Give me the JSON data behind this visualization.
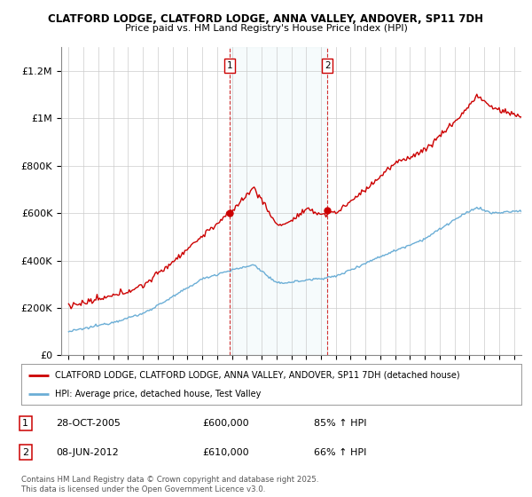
{
  "title": "CLATFORD LODGE, CLATFORD LODGE, ANNA VALLEY, ANDOVER, SP11 7DH",
  "subtitle": "Price paid vs. HM Land Registry's House Price Index (HPI)",
  "ylabel_ticks": [
    "£0",
    "£200K",
    "£400K",
    "£600K",
    "£800K",
    "£1M",
    "£1.2M"
  ],
  "ytick_values": [
    0,
    200000,
    400000,
    600000,
    800000,
    1000000,
    1200000
  ],
  "ylim": [
    0,
    1300000
  ],
  "xlim_start": 1994.5,
  "xlim_end": 2025.5,
  "hpi_color": "#6baed6",
  "sold_color": "#cc0000",
  "marker1_year": 2005.83,
  "marker2_year": 2012.44,
  "marker1_price": 600000,
  "marker2_price": 610000,
  "legend_sold": "CLATFORD LODGE, CLATFORD LODGE, ANNA VALLEY, ANDOVER, SP11 7DH (detached house)",
  "legend_hpi": "HPI: Average price, detached house, Test Valley",
  "copyright_text": "Contains HM Land Registry data © Crown copyright and database right 2025.\nThis data is licensed under the Open Government Licence v3.0.",
  "background_color": "#ffffff",
  "plot_bg_color": "#ffffff",
  "grid_color": "#cccccc",
  "title_fontsize": 8.5,
  "subtitle_fontsize": 8.0
}
